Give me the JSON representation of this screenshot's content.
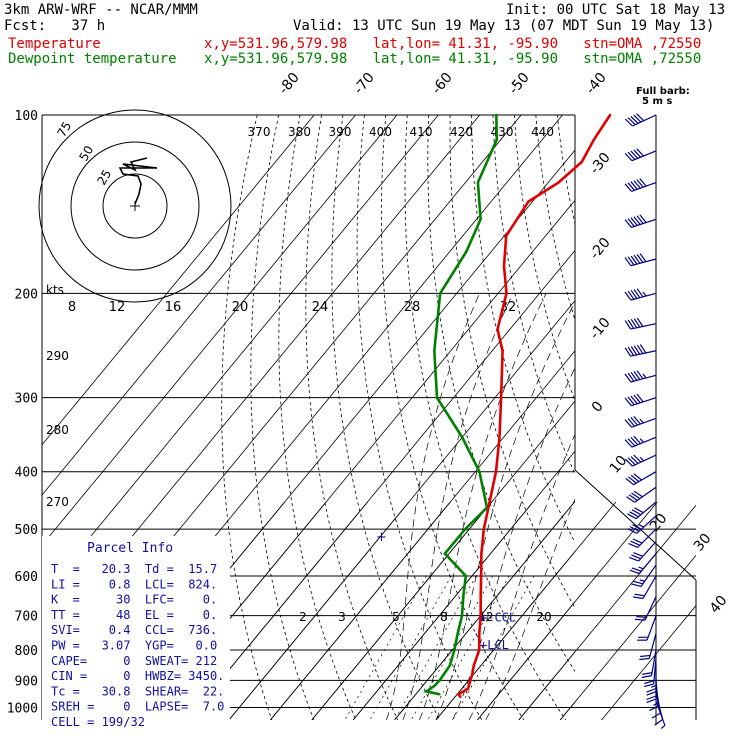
{
  "header": {
    "model": "3km ARW-WRF -- NCAR/MMM",
    "init": "Init: 00 UTC Sat 18 May 13",
    "fcst": "Fcst:   37 h",
    "valid": "Valid: 13 UTC Sun 19 May 13 (07 MDT Sun 19 May 13)",
    "temp_label": "Temperature",
    "dew_label": "Dewpoint temperature",
    "loc_info": "x,y=531.96,579.98   lat,lon= 41.31, -95.90   stn=OMA ,72550"
  },
  "chart_data": {
    "type": "line",
    "pressure_labels": [
      "100",
      "200",
      "300",
      "400",
      "500",
      "600",
      "700",
      "800",
      "900",
      "1000"
    ],
    "pressure_levels": [
      100,
      200,
      300,
      400,
      500,
      600,
      700,
      800,
      900,
      1000
    ],
    "isotherm_labels": [
      {
        "t": -80,
        "text": "-80"
      },
      {
        "t": -70,
        "text": "-70"
      },
      {
        "t": -60,
        "text": "-60"
      },
      {
        "t": -50,
        "text": "-50"
      },
      {
        "t": -40,
        "text": "-40"
      },
      {
        "t": -30,
        "text": "-30"
      },
      {
        "t": -20,
        "text": "-20"
      },
      {
        "t": -10,
        "text": "-10"
      },
      {
        "t": 0,
        "text": "0"
      },
      {
        "t": 10,
        "text": "10"
      },
      {
        "t": 20,
        "text": "20"
      },
      {
        "t": 30,
        "text": "30"
      },
      {
        "t": 40,
        "text": "40"
      }
    ],
    "theta_labels": [
      "370",
      "380",
      "390",
      "400",
      "410",
      "420",
      "430",
      "440"
    ],
    "theta_left_labels": [
      "290",
      "280",
      "270"
    ],
    "mixing_ratio_labels": [
      "2",
      "3",
      "5",
      "8",
      "12",
      "20"
    ],
    "hodograph": {
      "kts_label": "kts",
      "ring_labels": [
        "25",
        "50",
        "75"
      ],
      "speed_labels": [
        "8",
        "12",
        "16",
        "20",
        "24",
        "28",
        "32"
      ],
      "trace": [
        [
          0,
          -2
        ],
        [
          4,
          -12
        ],
        [
          6,
          -22
        ],
        [
          3,
          -30
        ],
        [
          -12,
          -32
        ],
        [
          -15,
          -38
        ],
        [
          22,
          -38
        ],
        [
          -12,
          -42
        ],
        [
          0,
          -36
        ],
        [
          -4,
          -44
        ],
        [
          12,
          -48
        ]
      ]
    },
    "temperature": {
      "name": "Temperature",
      "points": [
        {
          "p": 960,
          "t": 21.3
        },
        {
          "p": 950,
          "t": 20.3
        },
        {
          "p": 930,
          "t": 21.5
        },
        {
          "p": 900,
          "t": 20.4
        },
        {
          "p": 880,
          "t": 19.7
        },
        {
          "p": 850,
          "t": 18.3
        },
        {
          "p": 800,
          "t": 16.5
        },
        {
          "p": 750,
          "t": 13.2
        },
        {
          "p": 700,
          "t": 10.0
        },
        {
          "p": 650,
          "t": 6.2
        },
        {
          "p": 600,
          "t": 2.2
        },
        {
          "p": 550,
          "t": -2.2
        },
        {
          "p": 500,
          "t": -6.5
        },
        {
          "p": 450,
          "t": -10.5
        },
        {
          "p": 400,
          "t": -15.0
        },
        {
          "p": 350,
          "t": -21.0
        },
        {
          "p": 300,
          "t": -28.5
        },
        {
          "p": 250,
          "t": -37.5
        },
        {
          "p": 230,
          "t": -43.0
        },
        {
          "p": 200,
          "t": -48.0
        },
        {
          "p": 180,
          "t": -54.0
        },
        {
          "p": 160,
          "t": -59.5
        },
        {
          "p": 140,
          "t": -61.0
        },
        {
          "p": 130,
          "t": -57.5
        },
        {
          "p": 120,
          "t": -56.0
        },
        {
          "p": 110,
          "t": -57.5
        },
        {
          "p": 100,
          "t": -58.5
        }
      ]
    },
    "dewpoint": {
      "name": "Dewpoint temperature",
      "points": [
        {
          "p": 950,
          "t": 15.7
        },
        {
          "p": 940,
          "t": 12.0
        },
        {
          "p": 920,
          "t": 12.8
        },
        {
          "p": 900,
          "t": 13.0
        },
        {
          "p": 850,
          "t": 12.5
        },
        {
          "p": 800,
          "t": 10.5
        },
        {
          "p": 750,
          "t": 8.0
        },
        {
          "p": 700,
          "t": 5.5
        },
        {
          "p": 650,
          "t": 2.0
        },
        {
          "p": 600,
          "t": -1.5
        },
        {
          "p": 550,
          "t": -11.0
        },
        {
          "p": 500,
          "t": -11.0
        },
        {
          "p": 460,
          "t": -10.0
        },
        {
          "p": 400,
          "t": -19.0
        },
        {
          "p": 350,
          "t": -30.0
        },
        {
          "p": 300,
          "t": -44.0
        },
        {
          "p": 250,
          "t": -54.0
        },
        {
          "p": 200,
          "t": -64.0
        },
        {
          "p": 170,
          "t": -66.0
        },
        {
          "p": 150,
          "t": -69.0
        },
        {
          "p": 130,
          "t": -77.0
        },
        {
          "p": 110,
          "t": -81.0
        },
        {
          "p": 100,
          "t": -86.0
        }
      ]
    },
    "parcel_marks": [
      {
        "p": 705,
        "text": "+-CCL"
      },
      {
        "p": 785,
        "text": "+LCL"
      }
    ],
    "wind_barb_key": {
      "line1": "Full barb:",
      "line2": "5 m s"
    },
    "wind_barbs": [
      {
        "p": 100,
        "dir": 245,
        "spd": 25
      },
      {
        "p": 115,
        "dir": 248,
        "spd": 27
      },
      {
        "p": 130,
        "dir": 250,
        "spd": 30
      },
      {
        "p": 150,
        "dir": 252,
        "spd": 32
      },
      {
        "p": 175,
        "dir": 255,
        "spd": 30
      },
      {
        "p": 200,
        "dir": 255,
        "spd": 28
      },
      {
        "p": 225,
        "dir": 258,
        "spd": 26
      },
      {
        "p": 250,
        "dir": 258,
        "spd": 30
      },
      {
        "p": 275,
        "dir": 255,
        "spd": 28
      },
      {
        "p": 300,
        "dir": 252,
        "spd": 26
      },
      {
        "p": 325,
        "dir": 250,
        "spd": 24
      },
      {
        "p": 350,
        "dir": 248,
        "spd": 24
      },
      {
        "p": 375,
        "dir": 245,
        "spd": 23
      },
      {
        "p": 400,
        "dir": 240,
        "spd": 22
      },
      {
        "p": 425,
        "dir": 235,
        "spd": 21
      },
      {
        "p": 450,
        "dir": 230,
        "spd": 20
      },
      {
        "p": 475,
        "dir": 228,
        "spd": 19
      },
      {
        "p": 500,
        "dir": 225,
        "spd": 17
      },
      {
        "p": 525,
        "dir": 222,
        "spd": 16
      },
      {
        "p": 550,
        "dir": 220,
        "spd": 14
      },
      {
        "p": 575,
        "dir": 215,
        "spd": 13
      },
      {
        "p": 600,
        "dir": 210,
        "spd": 12
      },
      {
        "p": 650,
        "dir": 205,
        "spd": 10
      },
      {
        "p": 700,
        "dir": 200,
        "spd": 10
      },
      {
        "p": 750,
        "dir": 195,
        "spd": 10
      },
      {
        "p": 800,
        "dir": 190,
        "spd": 11
      },
      {
        "p": 825,
        "dir": 185,
        "spd": 12
      },
      {
        "p": 850,
        "dir": 180,
        "spd": 13
      },
      {
        "p": 875,
        "dir": 180,
        "spd": 11
      },
      {
        "p": 900,
        "dir": 175,
        "spd": 9
      },
      {
        "p": 925,
        "dir": 170,
        "spd": 7
      },
      {
        "p": 950,
        "dir": 165,
        "spd": 5
      },
      {
        "p": 975,
        "dir": 160,
        "spd": 3
      }
    ],
    "parcel_info": {
      "title": "Parcel Info",
      "rows": [
        "T  =   20.3  Td =  15.7",
        "LI =    0.8  LCL=  824.",
        "K  =     30  LFC=    0.",
        "TT =     48  EL =    0.",
        "SVI=    0.4  CCL=  736.",
        "PW =   3.07  YGP=   0.0",
        "CAPE=     0  SWEAT= 212",
        "CIN =     0  HWBZ= 3450.",
        "Tc =   30.8  SHEAR=  22.",
        "SREH =    0  LAPSE=  7.0",
        "CELL = 199/32"
      ]
    },
    "colors": {
      "temperature": "#e00000",
      "dewpoint": "#008000",
      "parcel_text": "#1010a0",
      "wind_barbs": "#000080",
      "isotherm_lines": "#000000",
      "hodograph_trace": "#000000"
    }
  }
}
